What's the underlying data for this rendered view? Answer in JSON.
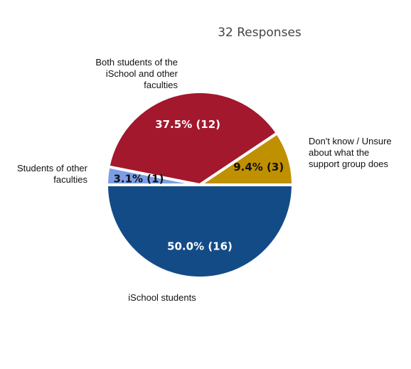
{
  "chart_data": {
    "type": "pie",
    "title": "32 Responses",
    "total": 32,
    "slices": [
      {
        "label": "iSchool students",
        "label_lines": [
          "iSchool students"
        ],
        "value": 16,
        "display": "50.0% (16)",
        "color": "#134b87",
        "text_color": "#ffffff"
      },
      {
        "label": "Students of other faculties",
        "label_lines": [
          "Students of other",
          "faculties"
        ],
        "value": 1,
        "display": "3.1% (1)",
        "color": "#7d9ee6",
        "text_color": "#111111"
      },
      {
        "label": "Both students of the iSchool and other faculties",
        "label_lines": [
          "Both students of the",
          "iSchool and other",
          "faculties"
        ],
        "value": 12,
        "display": "37.5% (12)",
        "color": "#a3182c",
        "text_color": "#ffffff"
      },
      {
        "label": "Don't know / Unsure about what the support group does",
        "label_lines": [
          "Don't know / Unsure",
          "about what the",
          "support group does"
        ],
        "value": 3,
        "display": "9.4% (3)",
        "color": "#bf9000",
        "text_color": "#111111"
      }
    ]
  }
}
